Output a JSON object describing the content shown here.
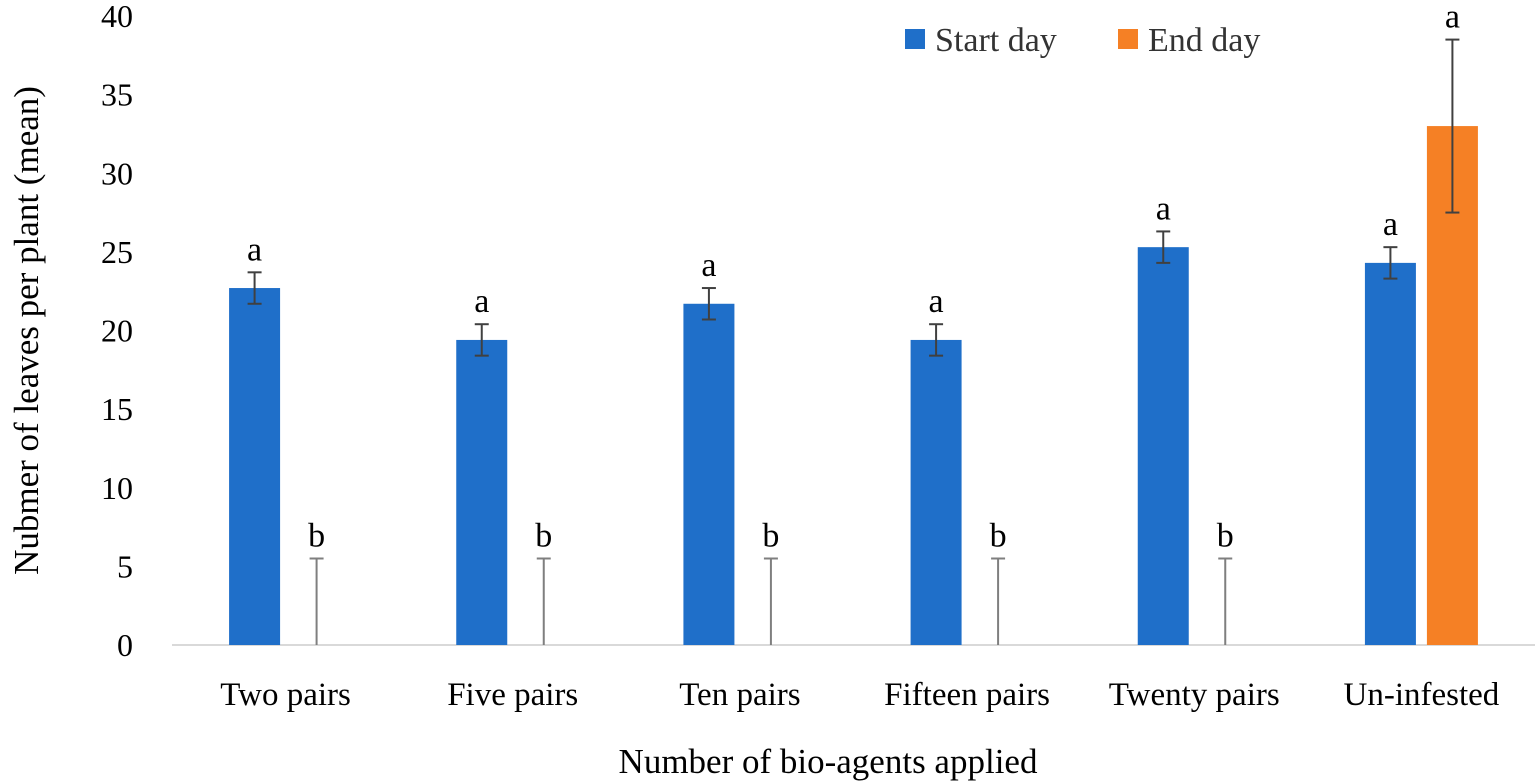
{
  "chart_data": {
    "type": "bar",
    "xlabel": "Number of bio-agents applied",
    "ylabel": "Nubmer of leaves per plant (mean)",
    "ylim": [
      0,
      40
    ],
    "y_ticks": [
      0,
      5,
      10,
      15,
      20,
      25,
      30,
      35,
      40
    ],
    "grid": false,
    "legend_position": "top-right",
    "categories": [
      "Two pairs",
      "Five pairs",
      "Ten pairs",
      "Fifteen pairs",
      "Twenty pairs",
      "Un-infested"
    ],
    "series": [
      {
        "name": "Start day",
        "color": "#1f6fc9",
        "values": [
          22.7,
          19.4,
          21.7,
          19.4,
          25.3,
          24.3
        ],
        "error": [
          1.0,
          1.0,
          1.0,
          1.0,
          1.0,
          1.0
        ],
        "labels": [
          "a",
          "a",
          "a",
          "a",
          "a",
          "a"
        ]
      },
      {
        "name": "End day",
        "color": "#f58025",
        "values": [
          0,
          0,
          0,
          0,
          0,
          33.0
        ],
        "error": [
          5.5,
          5.5,
          5.5,
          5.5,
          5.5,
          5.5
        ],
        "labels": [
          "b",
          "b",
          "b",
          "b",
          "b",
          "a"
        ]
      }
    ]
  }
}
